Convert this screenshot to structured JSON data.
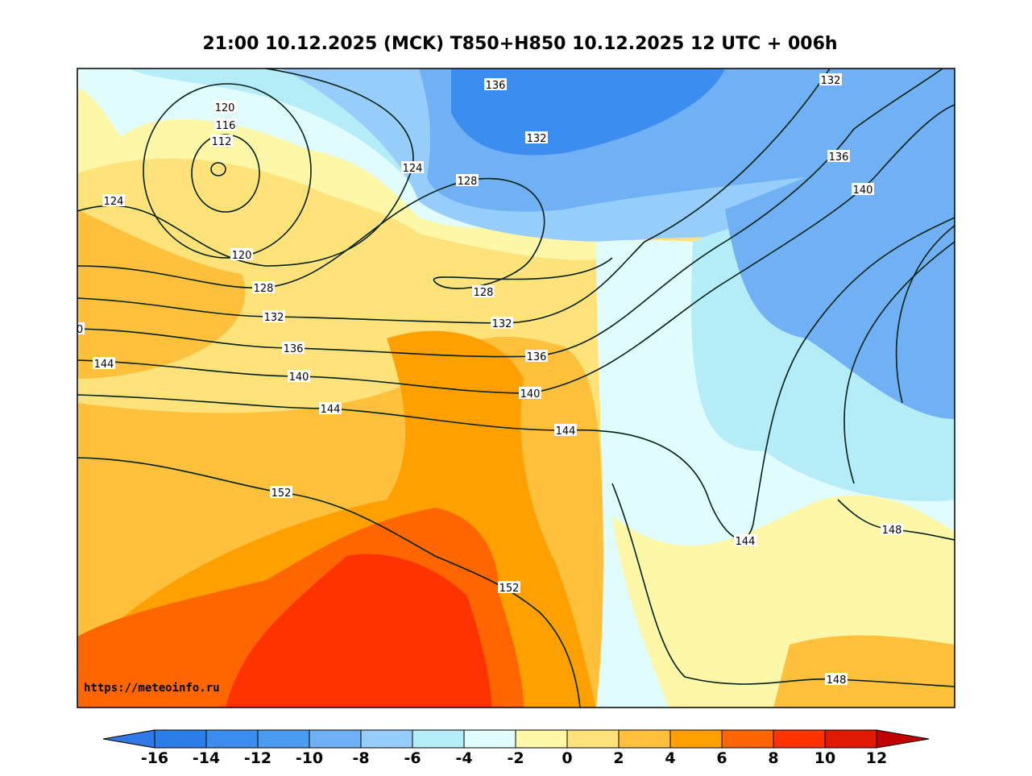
{
  "title": "21:00 10.12.2025 (MCK) T850+H850 10.12.2025 12 UTC + 006h",
  "watermark": "https://meteoinfo.ru",
  "colorbar": {
    "ticks": [
      "-16",
      "-14",
      "-12",
      "-10",
      "-8",
      "-6",
      "-4",
      "-2",
      "0",
      "2",
      "4",
      "6",
      "8",
      "10",
      "12"
    ],
    "colors": [
      "#2b7ee9",
      "#3b8ef0",
      "#4b9bf0",
      "#70b0f5",
      "#96cdfa",
      "#b4ecf8",
      "#e0fcfd",
      "#fff7a8",
      "#ffe27a",
      "#ffc03c",
      "#ffa000",
      "#ff6600",
      "#ff3300",
      "#e01a00"
    ],
    "under_color": "#2f78e6",
    "over_color": "#c00000"
  },
  "contour_labels": [
    "136",
    "132",
    "132",
    "120",
    "116",
    "112",
    "124",
    "128",
    "124",
    "120",
    "128",
    "136",
    "140",
    "128",
    "132",
    "132",
    "0",
    "136",
    "144",
    "136",
    "140",
    "140",
    "144",
    "144",
    "152",
    "144",
    "148",
    "152",
    "148"
  ]
}
